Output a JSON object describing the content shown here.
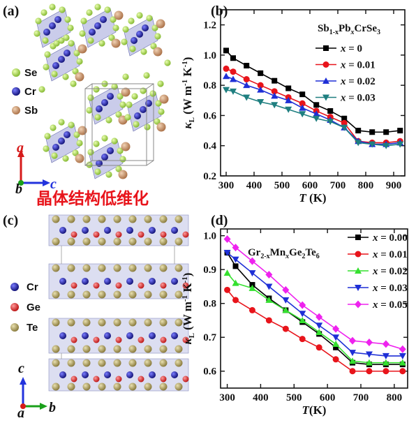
{
  "panels": {
    "a": {
      "label": "(a)",
      "legend": [
        {
          "name": "Se",
          "color": "#a6d93c"
        },
        {
          "name": "Cr",
          "color": "#1a1a9e"
        },
        {
          "name": "Sb",
          "color": "#c68b5e"
        }
      ],
      "axes": {
        "a": "a",
        "b": "b",
        "c": "c"
      },
      "banner": "晶体结构低维化"
    },
    "c": {
      "label": "(c)",
      "legend": [
        {
          "name": "Cr",
          "color": "#1a1a9e"
        },
        {
          "name": "Ge",
          "color": "#e02020"
        },
        {
          "name": "Te",
          "color": "#a89a55"
        }
      ],
      "axes": {
        "a": "a",
        "b": "b",
        "c": "c"
      }
    }
  },
  "chart_data": [
    {
      "panel_label": "(b)",
      "type": "line",
      "title_parts": [
        "Sb",
        "1-x",
        "Pb",
        "x",
        "CrSe",
        "3"
      ],
      "xlabel": {
        "symbol": "T",
        "unit": " (K)"
      },
      "ylabel": {
        "symbol": "κ",
        "sub": "L",
        "unit": "(W m",
        "unit2": "K",
        "exp": "-1"
      },
      "xlim": [
        280,
        940
      ],
      "ylim": [
        0.2,
        1.3
      ],
      "xticks": [
        300,
        400,
        500,
        600,
        700,
        800,
        900
      ],
      "yticks": [
        0.2,
        0.4,
        0.6,
        0.8,
        1.0,
        1.2
      ],
      "ytick_labels": [
        "0.2",
        "0.4",
        "0.6",
        "0.8",
        "1.0",
        "1.2"
      ],
      "legend_position": "right",
      "series": [
        {
          "name": "x = 0",
          "legend_var": "x",
          "legend_val": " = 0",
          "color": "#000000",
          "marker": "square",
          "x": [
            300,
            325,
            373,
            423,
            473,
            523,
            573,
            623,
            673,
            723,
            773,
            823,
            873,
            923
          ],
          "y": [
            1.03,
            0.98,
            0.93,
            0.88,
            0.83,
            0.78,
            0.74,
            0.67,
            0.63,
            0.58,
            0.5,
            0.49,
            0.49,
            0.5
          ]
        },
        {
          "name": "x = 0.01",
          "legend_var": "x",
          "legend_val": " = 0.01",
          "color": "#e8141b",
          "marker": "circle",
          "x": [
            300,
            325,
            373,
            423,
            473,
            523,
            573,
            623,
            673,
            723,
            773,
            823,
            873,
            923
          ],
          "y": [
            0.91,
            0.89,
            0.84,
            0.8,
            0.76,
            0.72,
            0.68,
            0.63,
            0.59,
            0.55,
            0.43,
            0.42,
            0.42,
            0.43
          ]
        },
        {
          "name": "x = 0.02",
          "legend_var": "x",
          "legend_val": " = 0.02",
          "color": "#1e2fd6",
          "marker": "triangle-up",
          "x": [
            300,
            325,
            373,
            423,
            473,
            523,
            573,
            623,
            673,
            723,
            773,
            823,
            873,
            923
          ],
          "y": [
            0.86,
            0.84,
            0.8,
            0.77,
            0.73,
            0.7,
            0.65,
            0.61,
            0.57,
            0.52,
            0.43,
            0.41,
            0.41,
            0.42
          ]
        },
        {
          "name": "x = 0.03",
          "legend_var": "x",
          "legend_val": " = 0.03",
          "color": "#1f7f80",
          "marker": "triangle-down",
          "x": [
            300,
            325,
            373,
            423,
            473,
            523,
            573,
            623,
            673,
            723,
            773,
            823,
            873,
            923
          ],
          "y": [
            0.77,
            0.76,
            0.72,
            0.69,
            0.67,
            0.64,
            0.61,
            0.58,
            0.56,
            0.52,
            0.42,
            0.41,
            0.4,
            0.41
          ]
        }
      ]
    },
    {
      "panel_label": "(d)",
      "type": "line",
      "title_parts": [
        "Gr",
        "2-x",
        "Mn",
        "x",
        "Ge",
        "2",
        "Te",
        "6"
      ],
      "xlabel": {
        "symbol": "T",
        "unit": "(K)"
      },
      "ylabel": {
        "symbol": "κ",
        "sub": "L",
        "unit": "(W m",
        "unit2": "K",
        "exp": "-1"
      },
      "xlim": [
        280,
        840
      ],
      "ylim": [
        0.55,
        1.02
      ],
      "xticks": [
        300,
        400,
        500,
        600,
        700,
        800
      ],
      "yticks": [
        0.6,
        0.7,
        0.8,
        0.9,
        1.0
      ],
      "ytick_labels": [
        "0.6",
        "0.7",
        "0.8",
        "0.9",
        "1.0"
      ],
      "legend_position": "top-right",
      "series": [
        {
          "name": "x = 0.00",
          "legend_var": "x",
          "legend_val": " = 0.00",
          "color": "#000000",
          "marker": "square",
          "x": [
            300,
            325,
            375,
            425,
            475,
            525,
            575,
            625,
            675,
            725,
            775,
            825
          ],
          "y": [
            0.95,
            0.91,
            0.855,
            0.815,
            0.78,
            0.745,
            0.71,
            0.67,
            0.625,
            0.62,
            0.62,
            0.62
          ]
        },
        {
          "name": "x = 0.01",
          "legend_var": "x",
          "legend_val": " = 0.01",
          "color": "#e8141b",
          "marker": "circle",
          "x": [
            300,
            325,
            375,
            425,
            475,
            525,
            575,
            625,
            675,
            725,
            775,
            825
          ],
          "y": [
            0.84,
            0.81,
            0.78,
            0.75,
            0.725,
            0.695,
            0.67,
            0.635,
            0.6,
            0.6,
            0.6,
            0.6
          ]
        },
        {
          "name": "x = 0.02",
          "legend_var": "x",
          "legend_val": " = 0.02",
          "color": "#35e02f",
          "marker": "triangle-up",
          "x": [
            300,
            325,
            375,
            425,
            475,
            525,
            575,
            625,
            675,
            725,
            775,
            825
          ],
          "y": [
            0.89,
            0.86,
            0.845,
            0.81,
            0.78,
            0.75,
            0.715,
            0.68,
            0.63,
            0.625,
            0.625,
            0.625
          ]
        },
        {
          "name": "x = 0.03",
          "legend_var": "x",
          "legend_val": " = 0.03",
          "color": "#1e2fd6",
          "marker": "triangle-down",
          "x": [
            300,
            325,
            375,
            425,
            475,
            525,
            575,
            625,
            675,
            725,
            775,
            825
          ],
          "y": [
            0.95,
            0.93,
            0.89,
            0.85,
            0.81,
            0.77,
            0.735,
            0.7,
            0.655,
            0.65,
            0.645,
            0.645
          ]
        },
        {
          "name": "x = 0.05",
          "legend_var": "x",
          "legend_val": " = 0.05",
          "color": "#ee22ee",
          "marker": "diamond",
          "x": [
            300,
            325,
            375,
            425,
            475,
            525,
            575,
            625,
            675,
            725,
            775,
            825
          ],
          "y": [
            0.99,
            0.965,
            0.925,
            0.885,
            0.84,
            0.795,
            0.76,
            0.725,
            0.69,
            0.685,
            0.68,
            0.665
          ]
        }
      ]
    }
  ]
}
